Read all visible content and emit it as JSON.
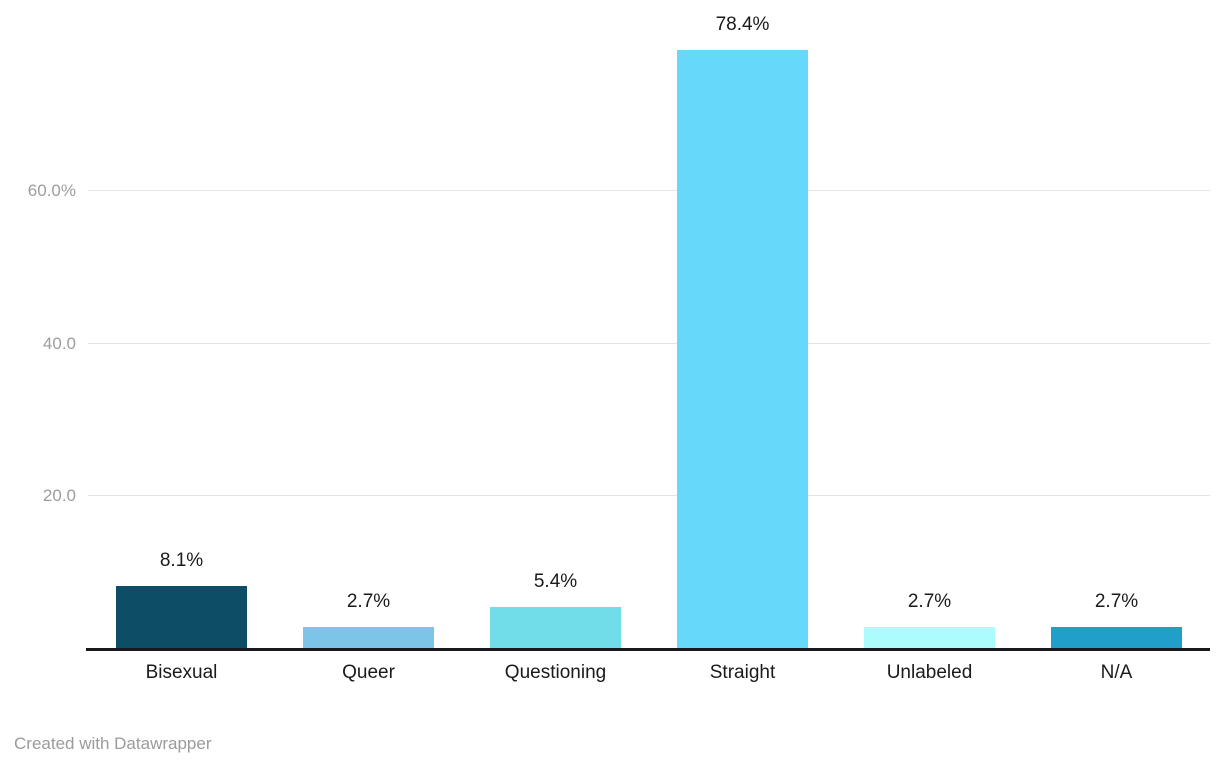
{
  "chart_data": {
    "type": "bar",
    "categories": [
      "Bisexual",
      "Queer",
      "Questioning",
      "Straight",
      "Unlabeled",
      "N/A"
    ],
    "values": [
      8.1,
      2.7,
      5.4,
      78.4,
      2.7,
      2.7
    ],
    "value_labels": [
      "8.1%",
      "2.7%",
      "5.4%",
      "78.4%",
      "2.7%",
      "2.7%"
    ],
    "bar_colors": [
      "#0d4e66",
      "#7dc5e8",
      "#70dde8",
      "#66d9fb",
      "#aafcfd",
      "#1f9fc9"
    ],
    "y_ticks": [
      {
        "label": "20.0",
        "value": 20
      },
      {
        "label": "40.0",
        "value": 40
      },
      {
        "label": "60.0%",
        "value": 60
      }
    ],
    "ylim": [
      0,
      80
    ],
    "grid": true,
    "legend": "none",
    "xlabel": "",
    "ylabel": ""
  },
  "colors": {
    "gridline": "#e3e3e3",
    "axis_line": "#18191c",
    "tick_text": "#9d9d9d",
    "label_text": "#1a1a1a",
    "credit_text": "#9b9b9b"
  },
  "footer": {
    "credit": "Created with Datawrapper"
  }
}
